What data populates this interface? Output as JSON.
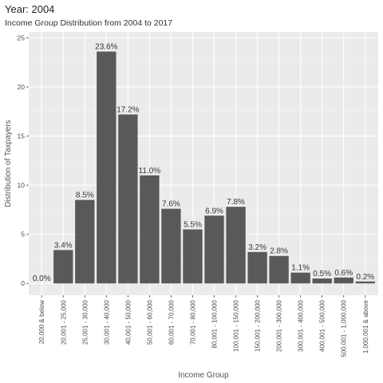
{
  "chart_data": {
    "type": "bar",
    "title": "Year: 2004",
    "subtitle": "Income Group Distribution from 2004 to 2017",
    "xlabel": "Income Group",
    "ylabel": "Distribution of Taxpayers",
    "categories": [
      "20,000 & below",
      "20,001 - 25,000",
      "25,001 - 30,000",
      "30,001 - 40,000",
      "40,001 - 50,000",
      "50,001 - 60,000",
      "60,001 - 70,000",
      "70,001 - 80,000",
      "80,001 - 100,000",
      "100,001 - 150,000",
      "150,001 - 200,000",
      "200,001 - 300,000",
      "300,001 - 400,000",
      "400,001 - 500,000",
      "500,001 - 1,000,000",
      "1,000,001 & above"
    ],
    "values": [
      0.0,
      3.4,
      8.5,
      23.6,
      17.2,
      11.0,
      7.6,
      5.5,
      6.9,
      7.8,
      3.2,
      2.8,
      1.1,
      0.5,
      0.6,
      0.2
    ],
    "data_labels": [
      "0.0%",
      "3.4%",
      "8.5%",
      "23.6%",
      "17.2%",
      "11.0%",
      "7.6%",
      "5.5%",
      "6.9%",
      "7.8%",
      "3.2%",
      "2.8%",
      "1.1%",
      "0.5%",
      "0.6%",
      "0.2%"
    ],
    "ylim": [
      -1.2,
      25.6
    ],
    "yticks": [
      0,
      5,
      10,
      15,
      20,
      25
    ],
    "grid": true,
    "colors": {
      "bar": "#595959",
      "panel": "#ebebeb",
      "grid_major": "#ffffff",
      "grid_minor": "#f4f4f4"
    }
  }
}
